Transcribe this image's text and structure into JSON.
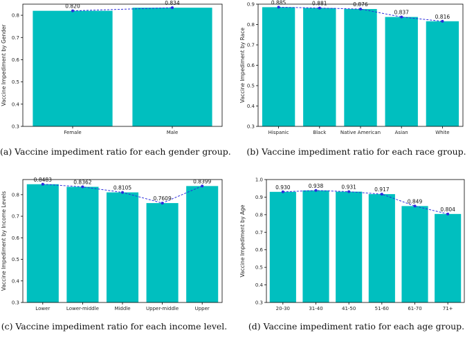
{
  "chart_data": [
    {
      "id": "a",
      "type": "bar",
      "categories": [
        "Female",
        "Male"
      ],
      "values": [
        0.82,
        0.834
      ],
      "labels": [
        "0.820",
        "0.834"
      ],
      "ylabel": "Vaccine Impediment by Gender",
      "ylim": [
        0.3,
        0.85
      ],
      "yticks": [
        "0.3",
        "0.4",
        "0.5",
        "0.6",
        "0.7",
        "0.8"
      ],
      "ytick_values": [
        0.3,
        0.4,
        0.5,
        0.6,
        0.7,
        0.8
      ],
      "bar_color": "#00bfbf",
      "line_color": "#2b2bdc",
      "caption": "(a)  Vaccine impediment ratio for each gender group."
    },
    {
      "id": "b",
      "type": "bar",
      "categories": [
        "Hispanic",
        "Black",
        "Native American",
        "Asian",
        "White"
      ],
      "values": [
        0.885,
        0.881,
        0.876,
        0.837,
        0.816
      ],
      "labels": [
        "0.885",
        "0.881",
        "0.876",
        "0.837",
        "0.816"
      ],
      "ylabel": "Vaccine Impediment by Race",
      "ylim": [
        0.3,
        0.9
      ],
      "yticks": [
        "0.3",
        "0.4",
        "0.5",
        "0.6",
        "0.7",
        "0.8",
        "0.9"
      ],
      "ytick_values": [
        0.3,
        0.4,
        0.5,
        0.6,
        0.7,
        0.8,
        0.9
      ],
      "bar_color": "#00bfbf",
      "line_color": "#2b2bdc",
      "caption": "(b)  Vaccine impediment ratio for each race group."
    },
    {
      "id": "c",
      "type": "bar",
      "categories": [
        "Lower",
        "Lower-middle",
        "Middle",
        "Upper-middle",
        "Upper"
      ],
      "values": [
        0.8483,
        0.8362,
        0.8105,
        0.7609,
        0.8399
      ],
      "labels": [
        "0.8483",
        "0.8362",
        "0.8105",
        "0.7609",
        "0.8399"
      ],
      "ylabel": "Vaccine Impediment by Income Levels",
      "ylim": [
        0.3,
        0.87
      ],
      "yticks": [
        "0.3",
        "0.4",
        "0.5",
        "0.6",
        "0.7",
        "0.8"
      ],
      "ytick_values": [
        0.3,
        0.4,
        0.5,
        0.6,
        0.7,
        0.8
      ],
      "bar_color": "#00bfbf",
      "line_color": "#2b2bdc",
      "caption": "(c)  Vaccine impediment ratio for each income level."
    },
    {
      "id": "d",
      "type": "bar",
      "categories": [
        "20-30",
        "31-40",
        "41-50",
        "51-60",
        "61-70",
        "71+"
      ],
      "values": [
        0.93,
        0.938,
        0.931,
        0.917,
        0.849,
        0.804
      ],
      "labels": [
        "0.930",
        "0.938",
        "0.931",
        "0.917",
        "0.849",
        "0.804"
      ],
      "ylabel": "Vaccine Impediment by Age",
      "ylim": [
        0.3,
        1.0
      ],
      "yticks": [
        "0.3",
        "0.4",
        "0.5",
        "0.6",
        "0.7",
        "0.8",
        "0.9",
        "1.0"
      ],
      "ytick_values": [
        0.3,
        0.4,
        0.5,
        0.6,
        0.7,
        0.8,
        0.9,
        1.0
      ],
      "bar_color": "#00bfbf",
      "line_color": "#2b2bdc",
      "caption": "(d)  Vaccine impediment ratio for each age group."
    }
  ]
}
